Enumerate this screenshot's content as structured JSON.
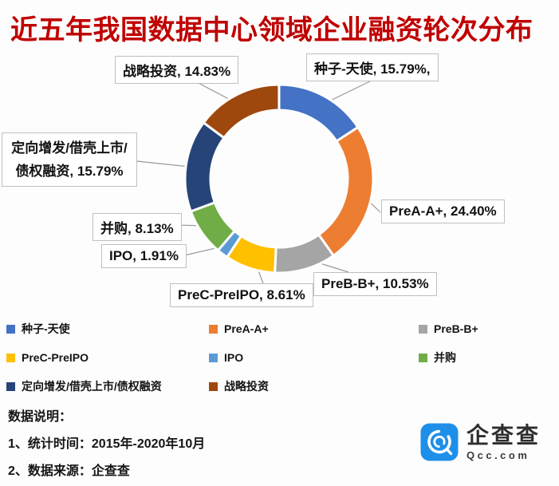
{
  "title": {
    "text": "近五年我国数据中心领域企业融资轮次分布",
    "color": "#C00000"
  },
  "chart_data": {
    "type": "pie",
    "subtype": "donut",
    "title": "近五年我国数据中心领域企业融资轮次分布",
    "unit": "percent",
    "categories": [
      "种子-天使",
      "PreA-A+",
      "PreB-B+",
      "PreC-PreIPO",
      "IPO",
      "并购",
      "定向增发/借壳上市/债权融资",
      "战略投资"
    ],
    "values": [
      15.79,
      24.4,
      10.53,
      8.61,
      1.91,
      8.13,
      15.79,
      14.83
    ],
    "colors": [
      "#4472C4",
      "#ED7D31",
      "#A5A5A5",
      "#FFC000",
      "#5B9BD5",
      "#70AD47",
      "#264478",
      "#9E480E"
    ],
    "start_angle_deg": 0,
    "direction": "clockwise",
    "inner_radius_ratio": 0.73,
    "legend_position": "bottom",
    "data_labels": [
      "种子-天使, 15.79%,",
      "PreA-A+, 24.40%",
      "PreB-B+, 10.53%",
      "PreC-PreIPO, 8.61%",
      "IPO, 1.91%",
      "并购, 8.13%",
      "定向增发/借壳上市/债权融资, 15.79%",
      "战略投资, 14.83%"
    ]
  },
  "callouts": {
    "strategic": {
      "text": "战略投资, 14.83%"
    },
    "seed": {
      "text": "种子-天使, 15.79%,"
    },
    "private_placement": {
      "line1": "定向增发/借壳上市/",
      "line2": "债权融资, 15.79%"
    },
    "merger": {
      "text": "并购, 8.13%"
    },
    "ipo": {
      "text": "IPO, 1.91%"
    },
    "prec": {
      "text": "PreC-PreIPO, 8.61%"
    },
    "preb": {
      "text": "PreB-B+, 10.53%"
    },
    "prea": {
      "text": "PreA-A+, 24.40%"
    }
  },
  "legend": {
    "items": [
      {
        "label": "种子-天使",
        "color": "#4472C4"
      },
      {
        "label": "PreA-A+",
        "color": "#ED7D31"
      },
      {
        "label": "PreB-B+",
        "color": "#A5A5A5"
      },
      {
        "label": "PreC-PreIPO",
        "color": "#FFC000"
      },
      {
        "label": "IPO",
        "color": "#5B9BD5"
      },
      {
        "label": "并购",
        "color": "#70AD47"
      },
      {
        "label": "定向增发/借壳上市/债权融资",
        "color": "#264478"
      },
      {
        "label": "战略投资",
        "color": "#9E480E"
      }
    ]
  },
  "footer": {
    "heading": "数据说明：",
    "lines": [
      "1、统计时间：2015年-2020年10月",
      "2、数据来源：企查查"
    ]
  },
  "logo": {
    "name": "企查查",
    "domain": "Qcc.com",
    "color": "#1E8FE9"
  }
}
